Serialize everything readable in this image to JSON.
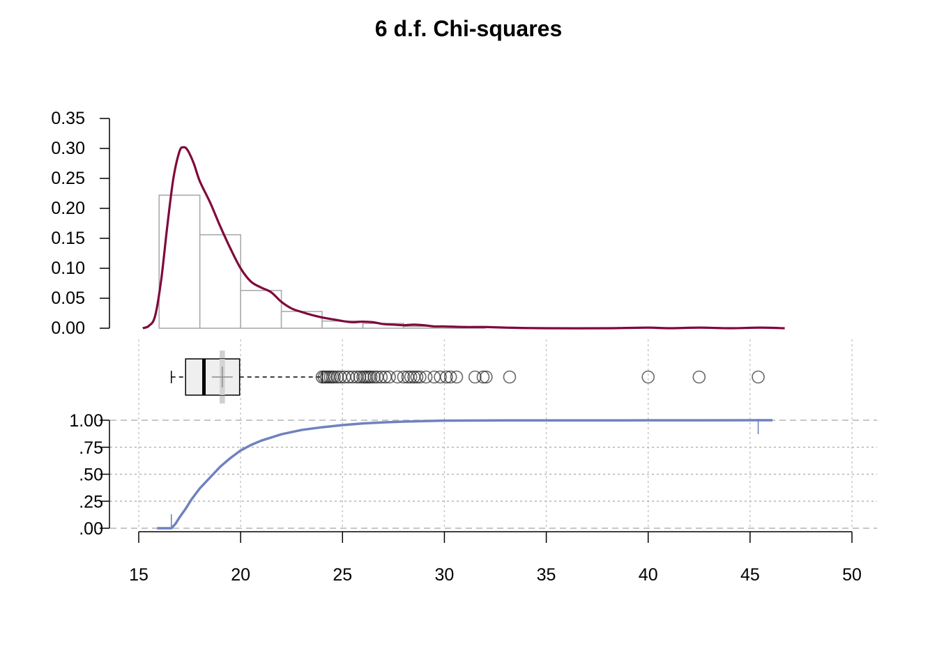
{
  "chart_data": {
    "type": "composite",
    "title": "6 d.f. Chi-squares",
    "x_axis": {
      "range": [
        15,
        50
      ],
      "ticks": [
        "15",
        "20",
        "25",
        "30",
        "35",
        "40",
        "45",
        "50"
      ],
      "grid": true
    },
    "histogram": {
      "y_range": [
        0,
        0.35
      ],
      "y_ticks": [
        "0.00",
        "0.05",
        "0.10",
        "0.15",
        "0.20",
        "0.25",
        "0.30",
        "0.35"
      ],
      "bins": [
        {
          "x0": 16,
          "x1": 18,
          "density": 0.222
        },
        {
          "x0": 18,
          "x1": 20,
          "density": 0.156
        },
        {
          "x0": 20,
          "x1": 22,
          "density": 0.063
        },
        {
          "x0": 22,
          "x1": 24,
          "density": 0.028
        },
        {
          "x0": 24,
          "x1": 26,
          "density": 0.012
        },
        {
          "x0": 26,
          "x1": 28,
          "density": 0.008
        },
        {
          "x0": 28,
          "x1": 30,
          "density": 0.003
        },
        {
          "x0": 30,
          "x1": 32,
          "density": 0.001
        }
      ],
      "bar_fill": "#ffffff",
      "bar_stroke": "#a6a6a6"
    },
    "density": {
      "color": "#80083b",
      "points": [
        [
          15.2,
          0.0
        ],
        [
          15.5,
          0.004
        ],
        [
          15.8,
          0.02
        ],
        [
          16.1,
          0.08
        ],
        [
          16.4,
          0.17
        ],
        [
          16.7,
          0.25
        ],
        [
          17.0,
          0.295
        ],
        [
          17.2,
          0.302
        ],
        [
          17.4,
          0.297
        ],
        [
          17.7,
          0.275
        ],
        [
          18.0,
          0.245
        ],
        [
          18.5,
          0.21
        ],
        [
          19.0,
          0.17
        ],
        [
          19.5,
          0.133
        ],
        [
          20.0,
          0.1
        ],
        [
          20.5,
          0.078
        ],
        [
          21.0,
          0.068
        ],
        [
          21.5,
          0.06
        ],
        [
          22.0,
          0.044
        ],
        [
          22.5,
          0.033
        ],
        [
          23.0,
          0.027
        ],
        [
          23.5,
          0.022
        ],
        [
          24.0,
          0.018
        ],
        [
          24.5,
          0.015
        ],
        [
          25.0,
          0.012
        ],
        [
          25.5,
          0.01
        ],
        [
          26.0,
          0.011
        ],
        [
          26.5,
          0.01
        ],
        [
          27.0,
          0.007
        ],
        [
          27.5,
          0.006
        ],
        [
          28.0,
          0.005
        ],
        [
          28.5,
          0.006
        ],
        [
          29.0,
          0.005
        ],
        [
          29.5,
          0.003
        ],
        [
          30.0,
          0.003
        ],
        [
          31.0,
          0.002
        ],
        [
          32.0,
          0.002
        ],
        [
          33.0,
          0.001
        ],
        [
          35.0,
          0.0
        ],
        [
          38.0,
          0.0
        ],
        [
          40.0,
          0.001
        ],
        [
          41.0,
          0.0
        ],
        [
          42.5,
          0.001
        ],
        [
          44.0,
          0.0
        ],
        [
          45.5,
          0.001
        ],
        [
          46.7,
          0.0
        ]
      ]
    },
    "boxplot": {
      "whisker_low": 16.6,
      "q1": 17.3,
      "median": 18.2,
      "q3": 19.95,
      "whisker_high": 24.0,
      "mean": 19.1,
      "mean_band": [
        18.97,
        19.23
      ],
      "box_fill": "#efefef",
      "outliers": [
        24.0,
        24.1,
        24.2,
        24.3,
        24.4,
        24.5,
        24.6,
        24.75,
        24.9,
        25.1,
        25.3,
        25.5,
        25.7,
        25.85,
        26.0,
        26.1,
        26.2,
        26.3,
        26.4,
        26.55,
        26.7,
        26.9,
        27.1,
        27.3,
        27.7,
        28.0,
        28.2,
        28.35,
        28.5,
        28.65,
        28.8,
        29.1,
        29.5,
        29.8,
        30.1,
        30.3,
        30.6,
        31.5,
        31.9,
        32.05,
        33.2,
        40.0,
        42.5,
        45.4
      ]
    },
    "ecdf": {
      "y_range": [
        0,
        1
      ],
      "y_ticks": [
        ".00",
        ".25",
        ".50",
        ".75",
        "1.00"
      ],
      "color": "#6f82bf",
      "min": 16.6,
      "max": 45.4,
      "points": [
        [
          16.6,
          0.0
        ],
        [
          16.8,
          0.04
        ],
        [
          17.0,
          0.1
        ],
        [
          17.3,
          0.18
        ],
        [
          17.6,
          0.27
        ],
        [
          18.0,
          0.37
        ],
        [
          18.5,
          0.47
        ],
        [
          19.0,
          0.57
        ],
        [
          19.5,
          0.65
        ],
        [
          20.0,
          0.72
        ],
        [
          20.5,
          0.77
        ],
        [
          21.0,
          0.81
        ],
        [
          21.5,
          0.84
        ],
        [
          22.0,
          0.87
        ],
        [
          22.5,
          0.89
        ],
        [
          23.0,
          0.91
        ],
        [
          24.0,
          0.935
        ],
        [
          25.0,
          0.955
        ],
        [
          26.0,
          0.97
        ],
        [
          27.0,
          0.98
        ],
        [
          28.0,
          0.987
        ],
        [
          29.0,
          0.992
        ],
        [
          30.0,
          0.996
        ],
        [
          31.0,
          0.997
        ],
        [
          33.0,
          0.998
        ],
        [
          35.0,
          0.998
        ],
        [
          40.0,
          0.999
        ],
        [
          42.5,
          0.9995
        ],
        [
          45.4,
          1.0
        ]
      ]
    }
  }
}
